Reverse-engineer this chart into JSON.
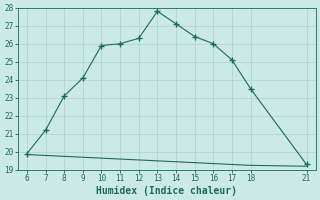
{
  "xlabel": "Humidex (Indice chaleur)",
  "x_main": [
    6,
    7,
    8,
    9,
    10,
    11,
    12,
    13,
    14,
    15,
    16,
    17,
    18,
    21
  ],
  "y_main": [
    19.9,
    21.2,
    23.1,
    24.1,
    25.9,
    26.0,
    26.3,
    27.8,
    27.1,
    26.4,
    26.0,
    25.1,
    23.5,
    19.3
  ],
  "x_flat": [
    6,
    7,
    8,
    9,
    10,
    11,
    12,
    13,
    14,
    15,
    16,
    17,
    18,
    21
  ],
  "y_flat": [
    19.85,
    19.8,
    19.75,
    19.7,
    19.65,
    19.6,
    19.55,
    19.5,
    19.45,
    19.4,
    19.35,
    19.3,
    19.25,
    19.2
  ],
  "line_color": "#1a6b5e",
  "bg_color": "#cceae5",
  "grid_color": "#aad4ce",
  "ylim": [
    19,
    28
  ],
  "xlim": [
    5.5,
    21.5
  ],
  "yticks": [
    19,
    20,
    21,
    22,
    23,
    24,
    25,
    26,
    27,
    28
  ],
  "xticks": [
    6,
    7,
    8,
    9,
    10,
    11,
    12,
    13,
    14,
    15,
    16,
    17,
    18,
    21
  ]
}
